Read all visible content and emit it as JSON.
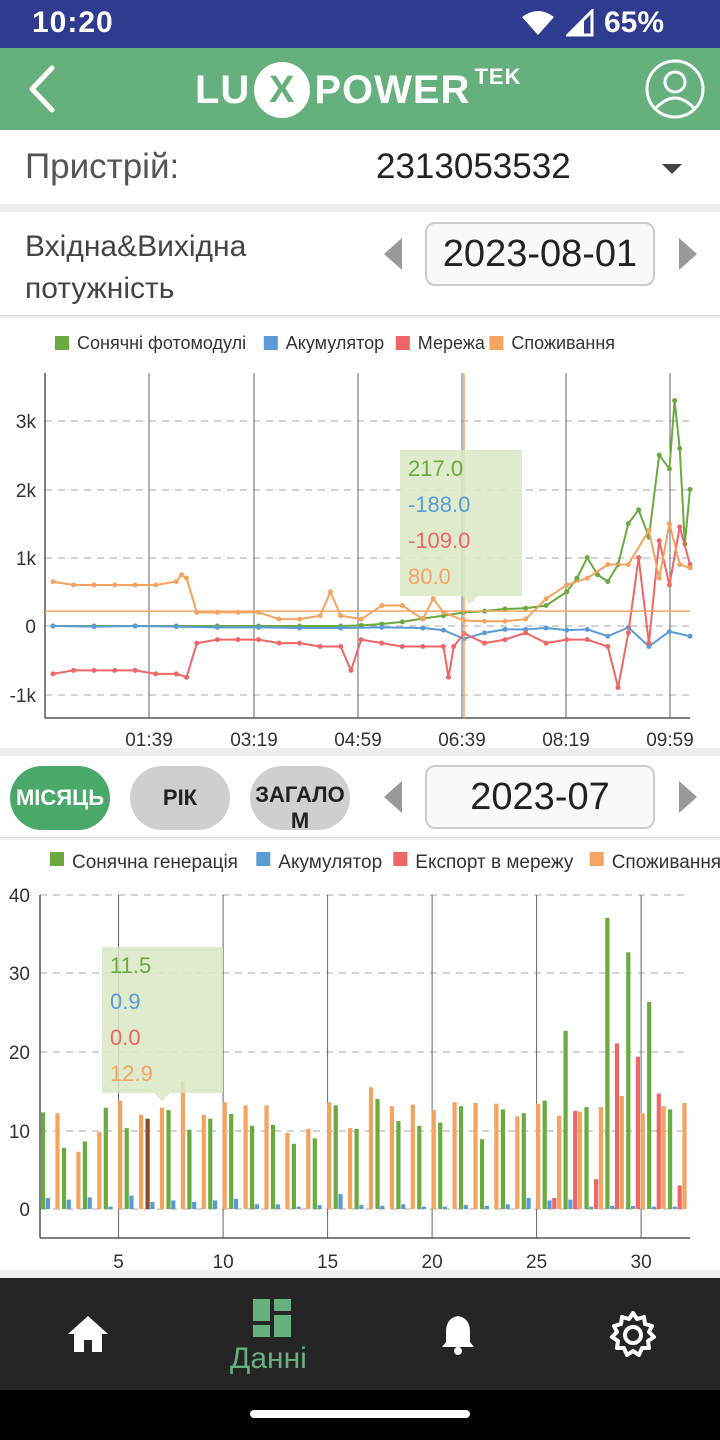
{
  "status_bar": {
    "time": "10:20",
    "battery": "65%"
  },
  "app": {
    "logo_lu": "LU",
    "logo_x": "X",
    "logo_power": "POWER",
    "logo_tek": "TEK"
  },
  "device": {
    "label": "Пристрій:",
    "value": "2313053532"
  },
  "power": {
    "title_line1": "Вхідна&Вихідна",
    "title_line2": "потужність",
    "date": "2023-08-01"
  },
  "colors": {
    "solar": "#6aaa3f",
    "battery": "#5b9bd5",
    "grid": "#ee6666",
    "consumption": "#f4a460",
    "accent": "#66b07e",
    "highlight_bar": "#8b4a2a"
  },
  "chart_data": [
    {
      "type": "line",
      "legend": [
        "Сонячні фотомодулі",
        "Акумулятор",
        "Мережа",
        "Споживання"
      ],
      "y_ticks": [
        "3k",
        "2k",
        "1k",
        "0",
        "-1k"
      ],
      "x_ticks": [
        "01:39",
        "03:19",
        "04:59",
        "06:39",
        "08:19",
        "09:59"
      ],
      "x_range": [
        0,
        620
      ],
      "y_range": [
        -1300,
        3800
      ],
      "tooltip": {
        "values": [
          "217.0",
          "-188.0",
          "-109.0",
          "80.0"
        ],
        "x": 400
      },
      "series": [
        {
          "name": "Сонячні фотомодулі",
          "key": "solar",
          "x": [
            0,
            40,
            80,
            120,
            160,
            200,
            240,
            280,
            300,
            320,
            340,
            360,
            380,
            400,
            420,
            440,
            460,
            480,
            500,
            510,
            520,
            530,
            540,
            550,
            560,
            570,
            580,
            590,
            600,
            605,
            610,
            615,
            620
          ],
          "values": [
            0,
            0,
            0,
            0,
            0,
            0,
            0,
            0,
            10,
            30,
            60,
            110,
            150,
            200,
            217,
            250,
            260,
            300,
            500,
            700,
            1000,
            750,
            650,
            900,
            1500,
            1700,
            1300,
            2500,
            2300,
            3300,
            2600,
            1200,
            2000
          ]
        },
        {
          "name": "Акумулятор",
          "key": "battery",
          "x": [
            0,
            40,
            80,
            120,
            160,
            200,
            240,
            280,
            320,
            360,
            380,
            400,
            420,
            440,
            460,
            480,
            500,
            520,
            540,
            560,
            580,
            600,
            620
          ],
          "values": [
            0,
            -10,
            0,
            -10,
            -20,
            -20,
            -30,
            -30,
            -20,
            -30,
            -60,
            -188,
            -100,
            -50,
            -50,
            -30,
            -60,
            -50,
            -150,
            -20,
            -300,
            -80,
            -150
          ]
        },
        {
          "name": "Мережа",
          "key": "grid",
          "x": [
            0,
            20,
            40,
            60,
            80,
            100,
            120,
            130,
            140,
            160,
            180,
            200,
            220,
            240,
            260,
            280,
            290,
            300,
            320,
            340,
            360,
            380,
            385,
            390,
            400,
            420,
            440,
            460,
            480,
            500,
            520,
            540,
            550,
            560,
            570,
            580,
            590,
            600,
            610,
            620
          ],
          "values": [
            -700,
            -650,
            -650,
            -650,
            -650,
            -700,
            -700,
            -750,
            -250,
            -200,
            -200,
            -200,
            -250,
            -250,
            -300,
            -300,
            -650,
            -200,
            -250,
            -300,
            -300,
            -300,
            -750,
            -300,
            -109,
            -250,
            -200,
            -100,
            -250,
            -200,
            -200,
            -300,
            -900,
            -100,
            1000,
            -250,
            1250,
            600,
            1450,
            900
          ]
        },
        {
          "name": "Споживання",
          "key": "consumption",
          "x": [
            0,
            20,
            40,
            60,
            80,
            100,
            120,
            125,
            130,
            140,
            160,
            180,
            200,
            220,
            240,
            260,
            270,
            280,
            300,
            320,
            340,
            360,
            370,
            380,
            400,
            420,
            440,
            460,
            480,
            500,
            520,
            540,
            560,
            580,
            590,
            600,
            610,
            620
          ],
          "values": [
            650,
            600,
            600,
            600,
            600,
            600,
            650,
            750,
            700,
            200,
            200,
            200,
            200,
            100,
            100,
            150,
            500,
            150,
            100,
            300,
            300,
            100,
            400,
            200,
            80,
            70,
            70,
            100,
            400,
            600,
            700,
            900,
            900,
            1400,
            700,
            1500,
            900,
            850
          ]
        }
      ]
    },
    {
      "type": "bar",
      "legend": [
        "Сонячна генерація",
        "Акумулятор",
        "Експорт в мережу",
        "Споживання"
      ],
      "y_ticks": [
        "40",
        "30",
        "20",
        "10",
        "0"
      ],
      "x_ticks": [
        "5",
        "10",
        "15",
        "20",
        "25",
        "30"
      ],
      "ylim": [
        0,
        40
      ],
      "categories": [
        1,
        2,
        3,
        4,
        5,
        6,
        7,
        8,
        9,
        10,
        11,
        12,
        13,
        14,
        15,
        16,
        17,
        18,
        19,
        20,
        21,
        22,
        23,
        24,
        25,
        26,
        27,
        28,
        29,
        30,
        31
      ],
      "highlight_index": 5,
      "tooltip": {
        "values": [
          "11.5",
          "0.9",
          "0.0",
          "12.9"
        ]
      },
      "series": [
        {
          "name": "Сонячна генерація",
          "key": "solar",
          "values": [
            12.3,
            7.8,
            8.6,
            12.9,
            10.3,
            11.5,
            12.6,
            10.1,
            11.5,
            12.1,
            10.6,
            10.7,
            8.3,
            9.0,
            13.2,
            10.2,
            14.0,
            11.2,
            10.6,
            11.0,
            13.1,
            8.9,
            12.7,
            12.2,
            13.8,
            22.7,
            13.0,
            37.1,
            32.7,
            26.4,
            12.7
          ]
        },
        {
          "name": "Акумулятор",
          "key": "battery",
          "values": [
            1.4,
            1.2,
            1.5,
            0.3,
            1.7,
            0.9,
            1.1,
            0.9,
            1.1,
            1.3,
            0.6,
            0.6,
            0.3,
            0.5,
            1.9,
            0.5,
            0.4,
            0.6,
            0.3,
            0.3,
            0.5,
            0.4,
            0.6,
            1.4,
            1.1,
            1.2,
            0.3,
            0.4,
            0.4,
            0.3,
            0.3
          ]
        },
        {
          "name": "Експорт в мережу",
          "key": "grid",
          "values": [
            0,
            0,
            0,
            0,
            0,
            0,
            0,
            0,
            0,
            0,
            0,
            0,
            0,
            0,
            0,
            0,
            0,
            0,
            0,
            0,
            0,
            0,
            0,
            0,
            1.4,
            12.5,
            3.8,
            21.1,
            19.4,
            14.7,
            3.0
          ]
        },
        {
          "name": "Споживання",
          "key": "consumption",
          "values": [
            12.2,
            7.3,
            9.8,
            13.8,
            12.0,
            12.9,
            16.3,
            12.0,
            13.6,
            13.2,
            13.2,
            9.7,
            10.2,
            13.6,
            10.3,
            15.5,
            13.1,
            13.3,
            12.6,
            13.6,
            13.5,
            13.4,
            11.8,
            13.4,
            11.9,
            12.4,
            13.0,
            14.4,
            12.2,
            13.1,
            13.5
          ]
        }
      ]
    }
  ],
  "bar_section": {
    "tab_month": "МІСЯЦЬ",
    "tab_year": "РІК",
    "tab_total": "ЗАГАЛО М",
    "date": "2023-07"
  },
  "bottom_nav": {
    "data_label": "Данні"
  }
}
